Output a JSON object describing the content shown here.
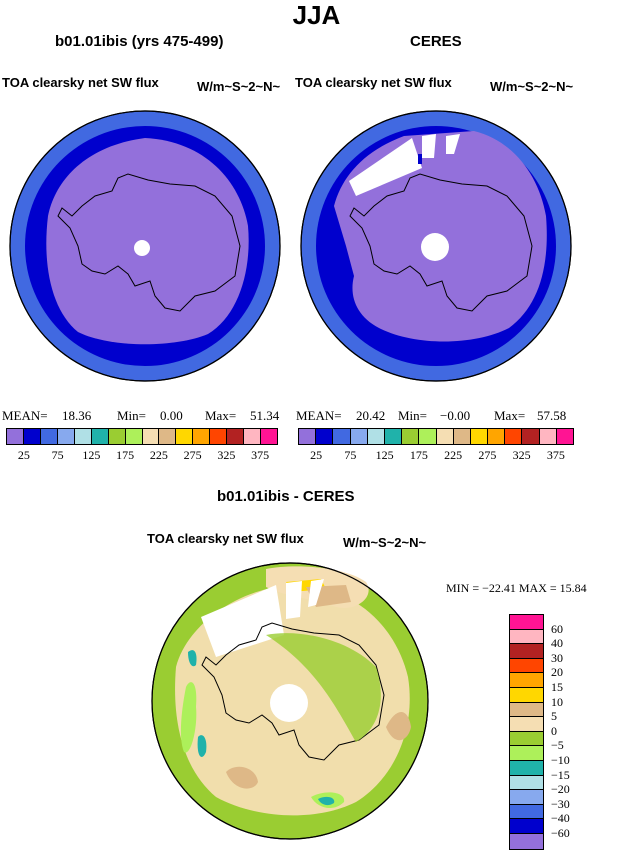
{
  "title": "JJA",
  "panels": {
    "model": {
      "title": "b01.01ibis (yrs 475-499)",
      "variable": "TOA clearsky net SW flux",
      "units": "W/m~S~2~N~",
      "stats": {
        "mean_label": "MEAN=",
        "mean": "18.36",
        "min_label": "Min=",
        "min": "0.00",
        "max_label": "Max=",
        "max": "51.34"
      }
    },
    "obs": {
      "title": "CERES",
      "variable": "TOA clearsky net SW flux",
      "units": "W/m~S~2~N~",
      "stats": {
        "mean_label": "MEAN=",
        "mean": "20.42",
        "min_label": "Min=",
        "min": "−0.00",
        "max_label": "Max=",
        "max": "57.58"
      }
    },
    "diff": {
      "title": "b01.01ibis - CERES",
      "variable": "TOA clearsky net SW flux",
      "units": "W/m~S~2~N~",
      "stats_text": "MIN = −22.41  MAX =  15.84"
    }
  },
  "colorbar_top": {
    "colors": [
      "#9370db",
      "#0000cd",
      "#4169e1",
      "#87a9ee",
      "#b0e0e6",
      "#20b2aa",
      "#9acd32",
      "#adf05a",
      "#f5deb3",
      "#deb887",
      "#ffd700",
      "#ffa500",
      "#ff4500",
      "#b22222",
      "#ffb6c1",
      "#ff1493"
    ],
    "tick_labels": [
      "25",
      "75",
      "125",
      "175",
      "225",
      "275",
      "325",
      "375"
    ]
  },
  "colorbar_diff": {
    "colors": [
      "#ff1493",
      "#ffb6c1",
      "#b22222",
      "#ff4500",
      "#ffa500",
      "#ffd700",
      "#deb887",
      "#f5deb3",
      "#9acd32",
      "#adf05a",
      "#20b2aa",
      "#b0e0e6",
      "#87a9ee",
      "#4169e1",
      "#0000cd",
      "#9370db"
    ],
    "tick_labels": [
      "60",
      "40",
      "30",
      "20",
      "15",
      "10",
      "5",
      "0",
      "−5",
      "−10",
      "−15",
      "−20",
      "−30",
      "−40",
      "−60"
    ]
  }
}
